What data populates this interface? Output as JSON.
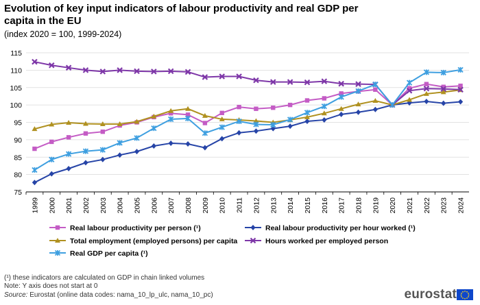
{
  "header": {
    "title": "Evolution of key input indicators of labour productivity and real GDP per capita in the EU",
    "subtitle": "(index 2020 = 100, 1999-2024)"
  },
  "footnotes": {
    "note1": "(¹) these indicators are calculated on GDP in chain linked volumes",
    "note2": "Note: Y axis does not start at 0",
    "source_label": "Source:",
    "source_text": "Eurostat (online data codes: nama_10_lp_ulc, nama_10_pc)"
  },
  "logo": {
    "text": "eurostat"
  },
  "chart_data": {
    "type": "line",
    "title": "Evolution of key input indicators of labour productivity and real GDP per capita in the EU",
    "xlabel": "",
    "ylabel": "",
    "ylim": [
      75,
      115
    ],
    "yticks": [
      75,
      80,
      85,
      90,
      95,
      100,
      105,
      110,
      115
    ],
    "grid": true,
    "legend_position": "bottom",
    "x": [
      "1999",
      "2000",
      "2001",
      "2002",
      "2003",
      "2004",
      "2005",
      "2006",
      "2007",
      "2008",
      "2009",
      "2010",
      "2011",
      "2012",
      "2013",
      "2014",
      "2015",
      "2016",
      "2017",
      "2018",
      "2019",
      "2020",
      "2021",
      "2022",
      "2023",
      "2024"
    ],
    "series": [
      {
        "name": "Real labour productivity per person (¹)",
        "color": "#c45cc5",
        "marker": "square",
        "values": [
          87.4,
          89.4,
          90.7,
          91.8,
          92.3,
          94.1,
          95.0,
          96.5,
          97.6,
          97.2,
          94.8,
          97.7,
          99.4,
          98.9,
          99.2,
          100.0,
          101.3,
          101.9,
          103.3,
          103.9,
          104.4,
          100.0,
          104.8,
          106.0,
          105.2,
          105.5
        ]
      },
      {
        "name": "Real labour productivity per hour worked (¹)",
        "color": "#2644a7",
        "marker": "diamond",
        "values": [
          77.7,
          80.2,
          81.7,
          83.4,
          84.3,
          85.6,
          86.6,
          88.2,
          89.0,
          88.8,
          87.7,
          90.3,
          92.0,
          92.5,
          93.2,
          93.9,
          95.3,
          95.7,
          97.3,
          97.9,
          98.7,
          100.0,
          100.6,
          101.0,
          100.5,
          100.9
        ]
      },
      {
        "name": "Total employment (employed persons) per capita",
        "color": "#b09120",
        "marker": "triangle",
        "values": [
          93.1,
          94.4,
          94.9,
          94.6,
          94.5,
          94.5,
          95.2,
          96.7,
          98.3,
          98.9,
          96.9,
          95.9,
          95.7,
          95.4,
          95.0,
          95.7,
          96.5,
          97.6,
          98.9,
          100.2,
          101.2,
          100.0,
          101.5,
          103.2,
          103.7,
          104.3
        ]
      },
      {
        "name": "Hours worked per employed person",
        "color": "#7e37a8",
        "marker": "cross",
        "values": [
          112.4,
          111.4,
          110.7,
          110.0,
          109.6,
          110.0,
          109.7,
          109.6,
          109.7,
          109.5,
          108.0,
          108.2,
          108.2,
          107.1,
          106.6,
          106.6,
          106.5,
          106.8,
          106.1,
          106.0,
          105.9,
          100.0,
          104.1,
          104.7,
          104.6,
          104.4
        ]
      },
      {
        "name": "Real GDP per capita (¹)",
        "color": "#3e9fe0",
        "marker": "x",
        "values": [
          81.3,
          84.3,
          85.9,
          86.7,
          87.1,
          89.1,
          90.5,
          93.3,
          95.9,
          96.1,
          91.9,
          93.6,
          95.3,
          94.4,
          94.3,
          95.8,
          97.8,
          99.6,
          102.3,
          104.0,
          105.9,
          100.0,
          106.4,
          109.4,
          109.3,
          110.1
        ]
      }
    ]
  }
}
